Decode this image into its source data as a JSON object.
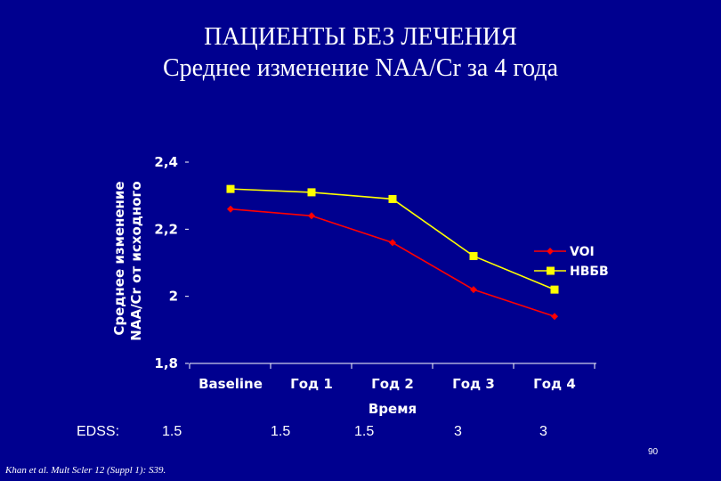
{
  "slide": {
    "title_line1": "ПАЦИЕНТЫ БЕЗ ЛЕЧЕНИЯ",
    "title_line2": "Среднее изменение NAA/Cr за 4 года",
    "page_number": "90",
    "citation": "Khan et al. Mult Scler 12 (Suppl 1): S39.",
    "edss_label": "EDSS:",
    "edss_values": [
      "1.5",
      "1.5",
      "1.5",
      "3",
      "3"
    ]
  },
  "chart_data": {
    "type": "line",
    "categories": [
      "Baseline",
      "Год 1",
      "Год 2",
      "Год 3",
      "Год 4"
    ],
    "series": [
      {
        "name": "VOI",
        "values": [
          2.26,
          2.24,
          2.16,
          2.02,
          1.94
        ],
        "color": "#ff0000",
        "marker": "diamond"
      },
      {
        "name": "НВБВ",
        "values": [
          2.32,
          2.31,
          2.29,
          2.12,
          2.02
        ],
        "color": "#ffff00",
        "marker": "square"
      }
    ],
    "xlabel": "Время",
    "ylabel_line1": "Среднее изменение",
    "ylabel_line2": "NAA/Cr от исходного",
    "yticks": [
      "2,4",
      "2,2",
      "2",
      "1,8"
    ],
    "ytick_values": [
      2.4,
      2.2,
      2.0,
      1.8
    ],
    "ylim": [
      1.8,
      2.4
    ],
    "grid": false,
    "legend_position": "right"
  }
}
